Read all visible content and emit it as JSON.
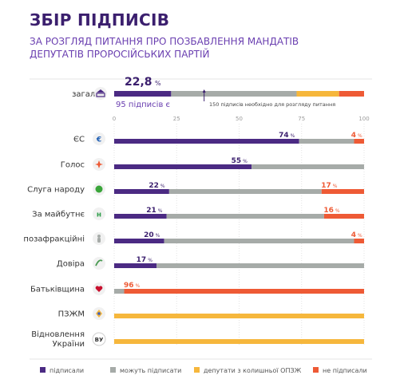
{
  "colors": {
    "signed": "#4b2a83",
    "can_sign": "#a6aba8",
    "former_opzzh": "#f6b73c",
    "not_signed": "#ee5a35",
    "title": "#3b1f6e",
    "subtitle": "#6a3fb0"
  },
  "header": {
    "title": "ЗБІР ПІДПИСІВ",
    "subtitle_line1": "ЗА РОЗГЛЯД ПИТАННЯ ПРО ПОЗБАВЛЕННЯ МАНДАТІВ",
    "subtitle_line2": "ДЕПУТАТІВ ПРОРОСІЙСЬКИХ ПАРТІЙ"
  },
  "chart_data": {
    "type": "bar",
    "orientation": "horizontal",
    "stacked": true,
    "xlim": [
      0,
      100
    ],
    "x_ticks": [
      "0",
      "25",
      "50",
      "75",
      "100"
    ],
    "legend_position": "bottom",
    "series_names": [
      "підписали",
      "можуть підписати",
      "депутати з колишньої ОПЗЖ",
      "не підписали"
    ],
    "summary": {
      "label": "загалом",
      "icon": "parliament-icon",
      "big_value": "22,8",
      "big_value_unit": "%",
      "signed_note": "95 підписів є",
      "threshold_note": "150 підписів необхідно для розгляду питання",
      "threshold_percent": 36,
      "values": [
        22.8,
        50.2,
        17,
        10
      ]
    },
    "rows": [
      {
        "label": "ЄС",
        "icon": "es-party-icon",
        "signed": 74,
        "can_sign": 22,
        "former_opzzh": 0,
        "not_signed": 4,
        "signed_label": "74",
        "not_signed_label": "4"
      },
      {
        "label": "Голос",
        "icon": "holos-party-icon",
        "signed": 55,
        "can_sign": 45,
        "former_opzzh": 0,
        "not_signed": 0,
        "signed_label": "55",
        "not_signed_label": ""
      },
      {
        "label": "Слуга народу",
        "icon": "servant-party-icon",
        "signed": 22,
        "can_sign": 61,
        "former_opzzh": 0,
        "not_signed": 17,
        "signed_label": "22",
        "not_signed_label": "17"
      },
      {
        "label": "За майбутнє",
        "icon": "future-party-icon",
        "signed": 21,
        "can_sign": 63,
        "former_opzzh": 0,
        "not_signed": 16,
        "signed_label": "21",
        "not_signed_label": "16"
      },
      {
        "label": "позафракційні",
        "icon": "independent-icon",
        "signed": 20,
        "can_sign": 76,
        "former_opzzh": 0,
        "not_signed": 4,
        "signed_label": "20",
        "not_signed_label": "4"
      },
      {
        "label": "Довіра",
        "icon": "dovira-party-icon",
        "signed": 17,
        "can_sign": 83,
        "former_opzzh": 0,
        "not_signed": 0,
        "signed_label": "17",
        "not_signed_label": ""
      },
      {
        "label": "Батьківщина",
        "icon": "batkivshchyna-party-icon",
        "signed": 0,
        "can_sign": 4,
        "former_opzzh": 0,
        "not_signed": 96,
        "signed_label": "",
        "not_signed_label": "96"
      },
      {
        "label": "ПЗЖМ",
        "icon": "pzzhm-party-icon",
        "signed": 0,
        "can_sign": 0,
        "former_opzzh": 100,
        "not_signed": 0,
        "signed_label": "",
        "not_signed_label": ""
      },
      {
        "label": "Відновлення\nУкраїни",
        "icon": "vu-party-icon",
        "icon_text": "ВУ",
        "signed": 0,
        "can_sign": 0,
        "former_opzzh": 100,
        "not_signed": 0,
        "signed_label": "",
        "not_signed_label": ""
      }
    ],
    "percent_sign": "%"
  },
  "legend": [
    {
      "label": "підписали",
      "color": "#4b2a83"
    },
    {
      "label": "можуть підписати",
      "color": "#a6aba8"
    },
    {
      "label": "депутати з колишньої ОПЗЖ",
      "color": "#f6b73c"
    },
    {
      "label": "не підписали",
      "color": "#ee5a35"
    }
  ]
}
